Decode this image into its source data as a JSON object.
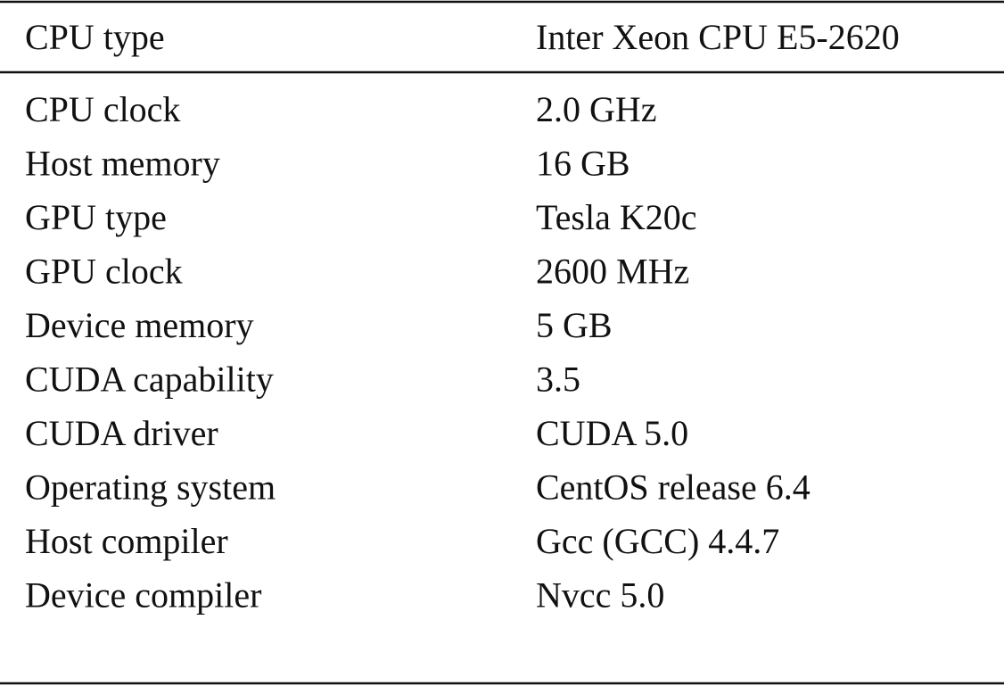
{
  "table": {
    "header": [
      "CPU type",
      "Inter Xeon CPU E5-2620"
    ],
    "rows": [
      [
        "CPU clock",
        "2.0 GHz"
      ],
      [
        "Host memory",
        "16 GB"
      ],
      [
        "GPU type",
        "Tesla K20c"
      ],
      [
        "GPU clock",
        "2600 MHz"
      ],
      [
        "Device memory",
        "5 GB"
      ],
      [
        "CUDA capability",
        "3.5"
      ],
      [
        "CUDA driver",
        "CUDA 5.0"
      ],
      [
        "Operating system",
        "CentOS release 6.4"
      ],
      [
        "Host compiler",
        "Gcc (GCC) 4.4.7"
      ],
      [
        "Device compiler",
        "Nvcc 5.0"
      ]
    ]
  }
}
